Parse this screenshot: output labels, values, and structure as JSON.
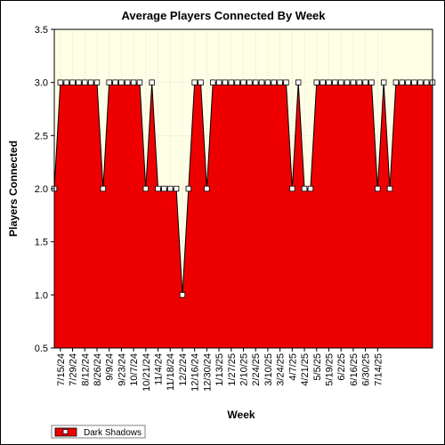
{
  "chart_data": {
    "type": "area",
    "title": "Average Players Connected By Week",
    "xlabel": "Week",
    "ylabel": "Players Connected",
    "ylim": [
      0.5,
      3.5
    ],
    "yticks": [
      "0.5",
      "1.0",
      "1.5",
      "2.0",
      "2.5",
      "3.0",
      "3.5"
    ],
    "x_tick_labels": [
      "7/15/24",
      "7/29/24",
      "8/12/24",
      "8/26/24",
      "9/9/24",
      "9/23/24",
      "10/7/24",
      "10/21/24",
      "11/4/24",
      "11/18/24",
      "12/2/24",
      "12/16/24",
      "12/30/24",
      "1/13/25",
      "1/27/25",
      "2/10/25",
      "2/24/25",
      "3/10/25",
      "3/24/25",
      "4/7/25",
      "4/21/25",
      "5/5/25",
      "5/19/25",
      "6/2/25",
      "6/16/25",
      "6/30/25",
      "7/14/25"
    ],
    "grid": true,
    "legend_position": "bottom-left",
    "series": [
      {
        "name": "Dark Shadows",
        "color": "#ee0000",
        "values": [
          2,
          3,
          3,
          3,
          3,
          3,
          3,
          3,
          2,
          3,
          3,
          3,
          3,
          3,
          3,
          2,
          3,
          2,
          2,
          2,
          2,
          1,
          2,
          3,
          3,
          2,
          3,
          3,
          3,
          3,
          3,
          3,
          3,
          3,
          3,
          3,
          3,
          3,
          3,
          2,
          3,
          2,
          2,
          3,
          3,
          3,
          3,
          3,
          3,
          3,
          3,
          3,
          3,
          2,
          3,
          2,
          3,
          3,
          3,
          3,
          3,
          3,
          3
        ]
      }
    ]
  }
}
